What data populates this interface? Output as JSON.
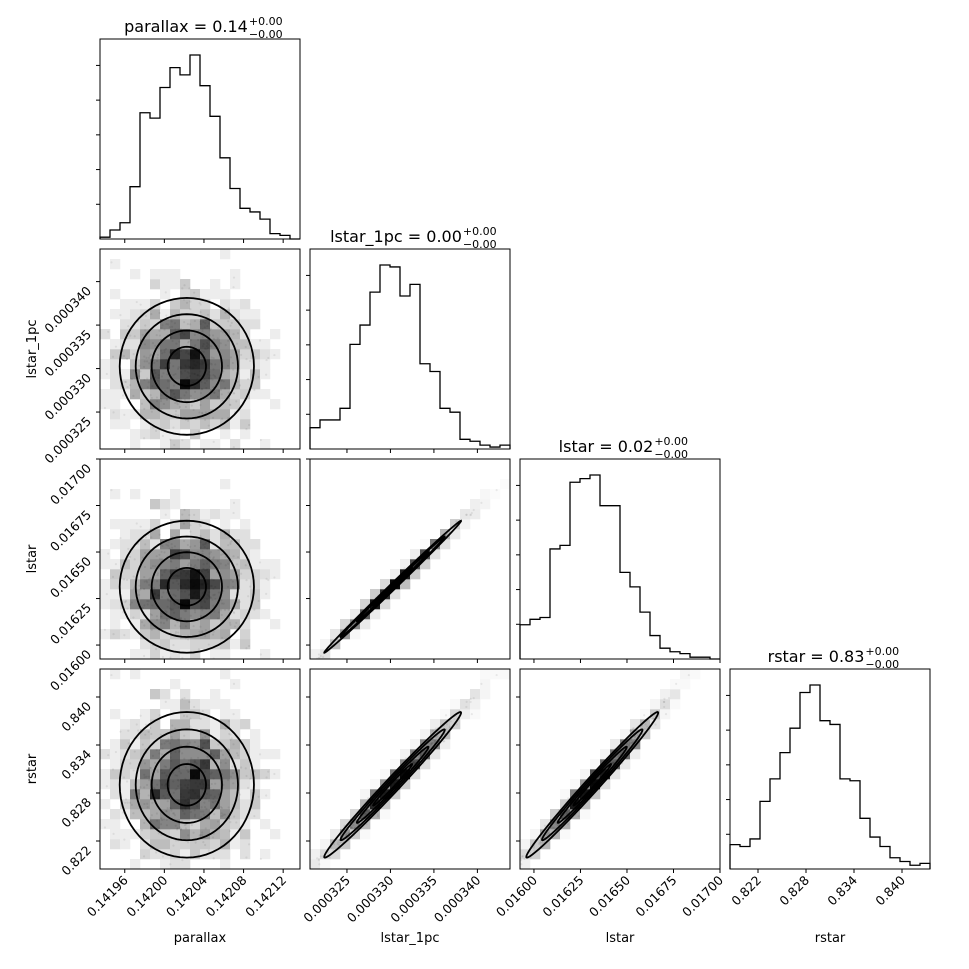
{
  "chart_data": {
    "type": "corner",
    "parameters": [
      "parallax",
      "lstar_1pc",
      "lstar",
      "rstar"
    ],
    "axis_labels": [
      "parallax",
      "lstar_1pc",
      "lstar",
      "rstar"
    ],
    "titles": [
      {
        "main": "parallax = 0.14",
        "sup": "+0.00",
        "sub": "−0.00"
      },
      {
        "main": "lstar_1pc = 0.00",
        "sup": "+0.00",
        "sub": "−0.00"
      },
      {
        "main": "lstar = 0.02",
        "sup": "+0.00",
        "sub": "−0.00"
      },
      {
        "main": "rstar = 0.83",
        "sup": "+0.00",
        "sub": "−0.00"
      }
    ],
    "ranges": [
      [
        0.141935,
        0.142137
      ],
      [
        0.00032075,
        0.00034375
      ],
      [
        0.015925,
        0.017
      ],
      [
        0.8185,
        0.8435
      ]
    ],
    "ticks": [
      {
        "values": [
          0.14196,
          0.142,
          0.14204,
          0.14208,
          0.14212
        ],
        "labels": [
          "0.14196",
          "0.14200",
          "0.14204",
          "0.14208",
          "0.14212"
        ]
      },
      {
        "values": [
          0.000325,
          0.00033,
          0.000335,
          0.00034
        ],
        "labels": [
          "0.000325",
          "0.000330",
          "0.000335",
          "0.000340"
        ]
      },
      {
        "values": [
          0.016,
          0.01625,
          0.0165,
          0.01675,
          0.017
        ],
        "labels": [
          "0.01600",
          "0.01625",
          "0.01650",
          "0.01675",
          "0.01700"
        ]
      },
      {
        "values": [
          0.822,
          0.828,
          0.834,
          0.84
        ],
        "labels": [
          "0.822",
          "0.828",
          "0.834",
          "0.840"
        ]
      }
    ],
    "histograms": [
      {
        "param": "parallax",
        "bins": 20,
        "counts": [
          1,
          5,
          9,
          29,
          70,
          67,
          84,
          95,
          91,
          102,
          85,
          68,
          45,
          28,
          17,
          15,
          11,
          3,
          2,
          0
        ]
      },
      {
        "param": "lstar_1pc",
        "bins": 20,
        "counts": [
          11,
          15,
          15,
          21,
          54,
          64,
          81,
          95,
          94,
          79,
          85,
          44,
          40,
          21,
          19,
          5,
          4,
          2,
          1,
          2
        ]
      },
      {
        "param": "lstar",
        "bins": 20,
        "counts": [
          19,
          22,
          23,
          61,
          63,
          98,
          100,
          102,
          85,
          85,
          48,
          40,
          26,
          13,
          6,
          4,
          3,
          1,
          1,
          0
        ]
      },
      {
        "param": "rstar",
        "bins": 20,
        "counts": [
          13,
          12,
          16,
          36,
          48,
          62,
          75,
          94,
          98,
          79,
          77,
          48,
          47,
          27,
          17,
          12,
          6,
          4,
          2,
          3
        ]
      }
    ],
    "grid": false,
    "legend": "none"
  }
}
